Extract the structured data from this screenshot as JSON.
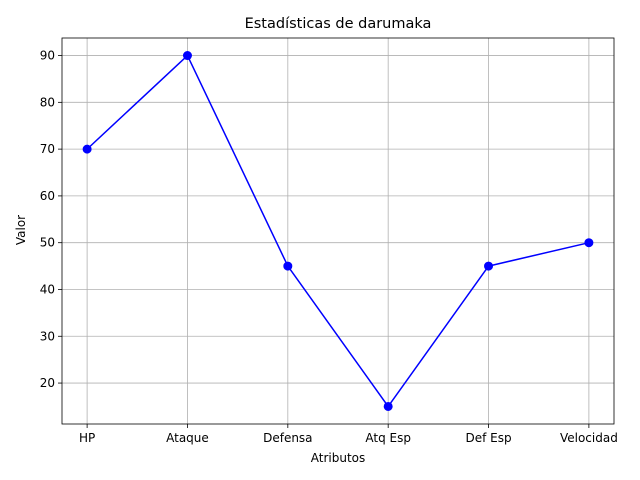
{
  "chart_data": {
    "type": "line",
    "title": "Estadísticas de darumaka",
    "xlabel": "Atributos",
    "ylabel": "Valor",
    "categories": [
      "HP",
      "Ataque",
      "Defensa",
      "Atq Esp",
      "Def Esp",
      "Velocidad"
    ],
    "series": [
      {
        "values": [
          70,
          90,
          45,
          15,
          45,
          50
        ],
        "color": "#0000ff",
        "marker": "circle"
      }
    ],
    "yticks": [
      20,
      30,
      40,
      50,
      60,
      70,
      80,
      90
    ],
    "ylim": [
      11.25,
      93.75
    ],
    "grid": true
  }
}
